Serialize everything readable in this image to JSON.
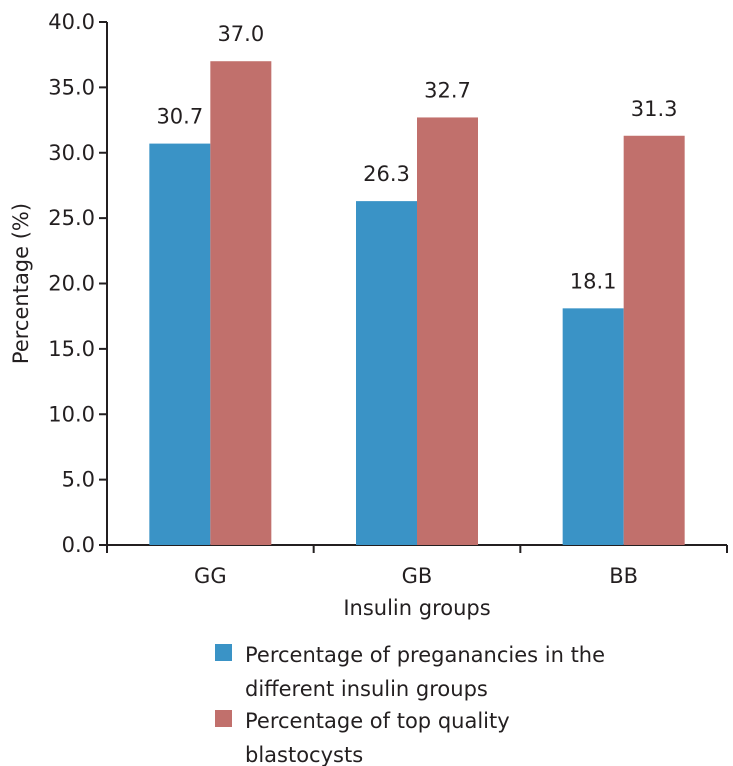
{
  "chart_data": {
    "type": "bar",
    "categories": [
      "GG",
      "GB",
      "BB"
    ],
    "series": [
      {
        "name": "Percentage of preganancies in the different insulin groups",
        "name_lines": [
          "Percentage of preganancies in the",
          "different insulin groups"
        ],
        "color": "#3a93c6",
        "values": [
          30.7,
          26.3,
          18.1
        ],
        "labels": [
          "30.7",
          "26.3",
          "18.1"
        ]
      },
      {
        "name": "Percentage of top quality blastocysts",
        "name_lines": [
          "Percentage of top quality",
          "blastocysts"
        ],
        "color": "#c1706c",
        "values": [
          37.0,
          32.7,
          31.3
        ],
        "labels": [
          "37.0",
          "32.7",
          "31.3"
        ]
      }
    ],
    "xlabel": "Insulin groups",
    "ylabel": "Percentage (%)",
    "ylim": [
      0,
      40
    ],
    "yticks": [
      "0.0",
      "5.0",
      "10.0",
      "15.0",
      "20.0",
      "25.0",
      "30.0",
      "35.0",
      "40.0"
    ],
    "grid": false,
    "legend_position": "bottom"
  }
}
